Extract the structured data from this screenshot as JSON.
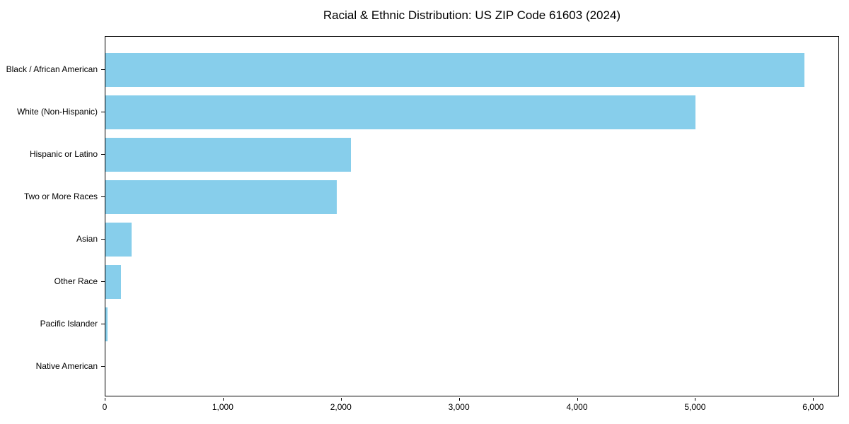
{
  "chart_data": {
    "type": "bar",
    "orientation": "horizontal",
    "title": "Racial & Ethnic Distribution: US ZIP Code 61603 (2024)",
    "xlabel": "",
    "ylabel": "",
    "categories": [
      "Black / African American",
      "White (Non-Hispanic)",
      "Hispanic or Latino",
      "Two or More Races",
      "Asian",
      "Other Race",
      "Pacific Islander",
      "Native American"
    ],
    "values": [
      5920,
      5000,
      2080,
      1960,
      220,
      133,
      18,
      0
    ],
    "xlim": [
      0,
      6220
    ],
    "xticks": [
      0,
      1000,
      2000,
      3000,
      4000,
      5000,
      6000
    ],
    "xtick_labels": [
      "0",
      "1,000",
      "2,000",
      "3,000",
      "4,000",
      "5,000",
      "6,000"
    ],
    "bar_color": "#87CEEB",
    "background_color": "#ffffff",
    "grid": false,
    "legend": null
  }
}
